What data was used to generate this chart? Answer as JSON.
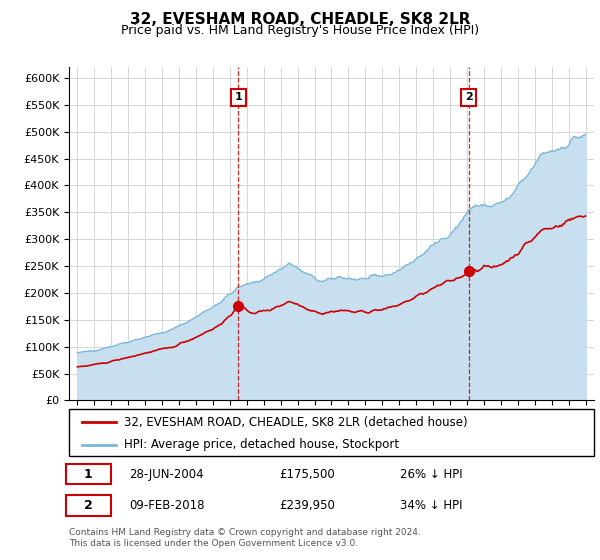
{
  "title": "32, EVESHAM ROAD, CHEADLE, SK8 2LR",
  "subtitle": "Price paid vs. HM Land Registry's House Price Index (HPI)",
  "ylim": [
    0,
    620000
  ],
  "yticks": [
    0,
    50000,
    100000,
    150000,
    200000,
    250000,
    300000,
    350000,
    400000,
    450000,
    500000,
    550000,
    600000
  ],
  "hpi_color": "#7ab8d9",
  "hpi_fill_color": "#c8dff0",
  "price_color": "#cc0000",
  "grid_color": "#d0d0d0",
  "bg_color": "#ffffff",
  "legend_entries": [
    "32, EVESHAM ROAD, CHEADLE, SK8 2LR (detached house)",
    "HPI: Average price, detached house, Stockport"
  ],
  "transaction_1": {
    "date": "28-JUN-2004",
    "price": 175500,
    "pct": "26%",
    "label": "1",
    "year": 2004.5
  },
  "transaction_2": {
    "date": "09-FEB-2018",
    "price": 239950,
    "pct": "34%",
    "label": "2",
    "year": 2018.1
  },
  "footnote1": "Contains HM Land Registry data © Crown copyright and database right 2024.",
  "footnote2": "This data is licensed under the Open Government Licence v3.0."
}
